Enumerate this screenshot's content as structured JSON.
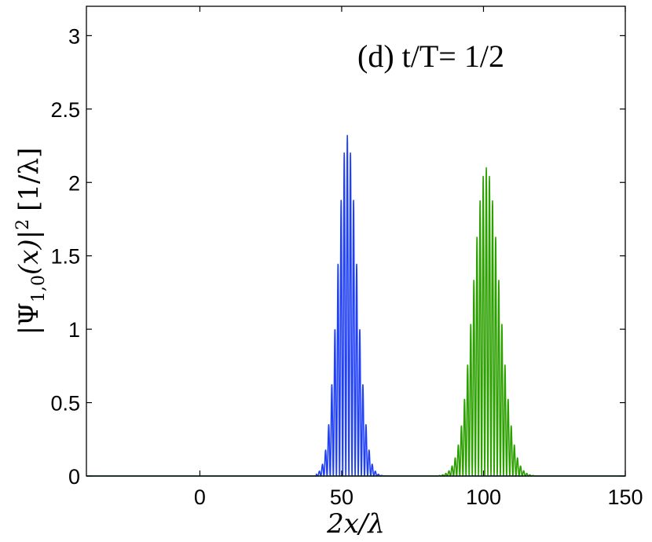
{
  "chart_data": {
    "type": "line",
    "annotation": "(d) t/T= 1/2",
    "xlabel": "2x/λ",
    "ylabel_main": "|Ψ",
    "ylabel_sub": "1,0",
    "ylabel_rest": "(x)|",
    "ylabel_sup": "2",
    "ylabel_unit": "[1/λ]",
    "xlim": [
      -40,
      150
    ],
    "ylim": [
      0,
      3.2
    ],
    "x_ticks": [
      0,
      50,
      100,
      150
    ],
    "x_tick_labels": [
      "0",
      "50",
      "100",
      "150"
    ],
    "y_ticks": [
      0,
      0.5,
      1,
      1.5,
      2,
      2.5,
      3
    ],
    "y_tick_labels": [
      "0",
      "0.5",
      "1",
      "1.5",
      "2",
      "2.5",
      "3"
    ],
    "grid": false,
    "series": [
      {
        "color": "#1f3fff",
        "center": 52,
        "peak": 2.32,
        "x_range": [
          43,
          65
        ],
        "period": 1.1
      },
      {
        "color": "#2ca000",
        "center": 101,
        "peak": 2.1,
        "x_range": [
          86,
          116
        ],
        "period": 1.1
      }
    ]
  }
}
